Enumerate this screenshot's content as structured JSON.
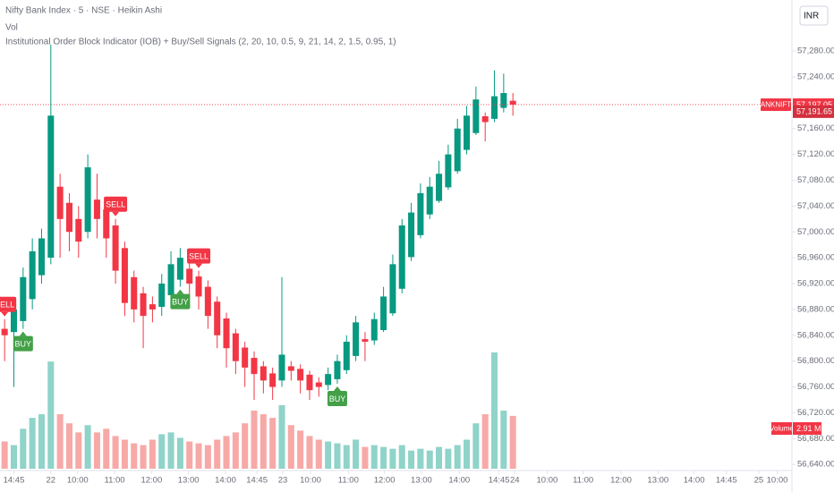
{
  "chart_data": {
    "type": "candlestick",
    "title": "Nifty Bank Index · 5 · NSE · Heikin Ashi",
    "volume_title": "Vol",
    "indicator_title": "Institutional Order Block Indicator (IOB) + Buy/Sell Signals (2, 20, 10, 0.5, 9, 21, 14, 2, 1.5, 0.95, 1)",
    "currency": "INR",
    "up_color": "#089981",
    "down_color": "#f23645",
    "volume_up_color": "#8fd3c9",
    "volume_down_color": "#f7a9a7",
    "grid": false,
    "xlim": [
      0,
      85.5
    ],
    "ylim": [
      56632,
      57359
    ],
    "xticks": [
      {
        "value": 1.5,
        "label": "14:45"
      },
      {
        "value": 5.5,
        "label": "22"
      },
      {
        "value": 8.4,
        "label": "10:00"
      },
      {
        "value": 12.4,
        "label": "11:00"
      },
      {
        "value": 16.4,
        "label": "12:00"
      },
      {
        "value": 20.4,
        "label": "13:00"
      },
      {
        "value": 24.4,
        "label": "14:00"
      },
      {
        "value": 27.8,
        "label": "14:45"
      },
      {
        "value": 30.6,
        "label": "23"
      },
      {
        "value": 33.6,
        "label": "10:00"
      },
      {
        "value": 37.7,
        "label": "11:00"
      },
      {
        "value": 41.6,
        "label": "12:00"
      },
      {
        "value": 45.6,
        "label": "13:00"
      },
      {
        "value": 49.7,
        "label": "14:00"
      },
      {
        "value": 54,
        "label": "14:45"
      },
      {
        "value": 55.7,
        "label": "24"
      },
      {
        "value": 59.2,
        "label": "10:00"
      },
      {
        "value": 63.1,
        "label": "11:00"
      },
      {
        "value": 67.2,
        "label": "12:00"
      },
      {
        "value": 71.2,
        "label": "13:00"
      },
      {
        "value": 75.1,
        "label": "14:00"
      },
      {
        "value": 78.6,
        "label": "14:45"
      },
      {
        "value": 82.1,
        "label": "25"
      },
      {
        "value": 84.1,
        "label": "10:00"
      }
    ],
    "yticks": [
      {
        "value": 57280,
        "label": "57,280.00"
      },
      {
        "value": 57240,
        "label": "57,240.00"
      },
      {
        "value": 57160,
        "label": "57,160.00"
      },
      {
        "value": 57120,
        "label": "57,120.00"
      },
      {
        "value": 57080,
        "label": "57,080.00"
      },
      {
        "value": 57040,
        "label": "57,040.00"
      },
      {
        "value": 57000,
        "label": "57,000.00"
      },
      {
        "value": 56960,
        "label": "56,960.00"
      },
      {
        "value": 56920,
        "label": "56,920.00"
      },
      {
        "value": 56880,
        "label": "56,880.00"
      },
      {
        "value": 56840,
        "label": "56,840.00"
      },
      {
        "value": 56800,
        "label": "56,800.00"
      },
      {
        "value": 56760,
        "label": "56,760.00"
      },
      {
        "value": 56720,
        "label": "56,720.00"
      },
      {
        "value": 56680,
        "label": "56,680.00"
      },
      {
        "value": 56640,
        "label": "56,640.00"
      }
    ],
    "x": [
      0.5,
      1.5,
      2.5,
      3.5,
      4.5,
      5.5,
      6.5,
      7.5,
      8.5,
      9.5,
      10.5,
      11.5,
      12.5,
      13.5,
      14.5,
      15.5,
      16.5,
      17.5,
      18.5,
      19.5,
      20.5,
      21.5,
      22.5,
      23.5,
      24.5,
      25.5,
      26.5,
      27.5,
      28.5,
      29.5,
      30.5,
      31.5,
      32.5,
      33.5,
      34.5,
      35.5,
      36.5,
      37.5,
      38.5,
      39.5,
      40.5,
      41.5,
      42.5,
      43.5,
      44.5,
      45.5,
      46.5,
      47.5,
      48.5,
      49.5,
      50.5,
      51.5,
      52.5,
      53.5,
      54.5,
      55.5
    ],
    "open": [
      56850,
      56845,
      56862,
      56896,
      56933,
      56960,
      57070,
      57045,
      57020,
      57000,
      57050,
      57035,
      57010,
      56975,
      56930,
      56905,
      56888,
      56884,
      56902,
      56926,
      56943,
      56931,
      56915,
      56892,
      56866,
      56843,
      56821,
      56805,
      56792,
      56781,
      56770,
      56792,
      56788,
      56779,
      56767,
      56763,
      56772,
      56786,
      56808,
      56834,
      56832,
      56848,
      56874,
      56912,
      56961,
      56995,
      57027,
      57048,
      57069,
      57094,
      57127,
      57153,
      57179,
      57175,
      57192,
      57203
    ],
    "high": [
      56865,
      56895,
      56945,
      56990,
      57005,
      57290,
      57090,
      57060,
      57040,
      57120,
      57090,
      57040,
      57020,
      56985,
      56940,
      56915,
      56900,
      56935,
      56970,
      56975,
      56955,
      56940,
      56925,
      56900,
      56875,
      56850,
      56830,
      56815,
      56800,
      56790,
      56930,
      56800,
      56795,
      56785,
      56775,
      56790,
      56810,
      56840,
      56870,
      56845,
      56875,
      56915,
      56965,
      57020,
      57045,
      57075,
      57085,
      57110,
      57135,
      57175,
      57195,
      57225,
      57185,
      57250,
      57245,
      57215
    ],
    "low": [
      56800,
      56760,
      56850,
      56880,
      56920,
      56950,
      56960,
      56970,
      56960,
      56990,
      56990,
      56960,
      56920,
      56870,
      56860,
      56820,
      56860,
      56870,
      56895,
      56915,
      56900,
      56880,
      56850,
      56820,
      56790,
      56780,
      56760,
      56740,
      56750,
      56740,
      56760,
      56770,
      56750,
      56740,
      56745,
      56755,
      56765,
      56780,
      56800,
      56800,
      56825,
      56845,
      56870,
      56905,
      56955,
      56990,
      57020,
      57045,
      57065,
      57090,
      57120,
      57150,
      57140,
      57170,
      57185,
      57180
    ],
    "close": [
      56840,
      56880,
      56930,
      56970,
      56990,
      57180,
      57020,
      57000,
      56985,
      57100,
      57020,
      56990,
      56940,
      56890,
      56880,
      56870,
      56880,
      56920,
      56950,
      56960,
      56920,
      56900,
      56870,
      56840,
      56820,
      56800,
      56790,
      56780,
      56770,
      56760,
      56810,
      56785,
      56770,
      56755,
      56760,
      56780,
      56800,
      56830,
      56860,
      56830,
      56865,
      56900,
      56950,
      57010,
      57030,
      57060,
      57070,
      57090,
      57120,
      57160,
      57180,
      57205,
      57170,
      57210,
      57215,
      57197.05
    ],
    "volume": {
      "name": "Volume",
      "last_value_label": "2.91 M",
      "values": [
        1.5,
        1.3,
        2.2,
        2.8,
        3.0,
        5.9,
        3.0,
        2.5,
        2.0,
        2.4,
        2.0,
        2.2,
        1.8,
        1.6,
        1.4,
        1.3,
        1.6,
        1.9,
        2.0,
        1.7,
        1.5,
        1.4,
        1.3,
        1.6,
        1.8,
        2.0,
        2.5,
        3.2,
        3.0,
        2.8,
        3.5,
        2.4,
        2.1,
        1.8,
        1.6,
        1.5,
        1.4,
        1.3,
        1.6,
        1.2,
        1.3,
        1.2,
        1.1,
        1.3,
        1.0,
        1.1,
        1.0,
        1.2,
        1.1,
        1.3,
        1.6,
        2.5,
        3.0,
        6.4,
        3.2,
        2.91
      ]
    },
    "signals": [
      {
        "candle": 0,
        "label": "SELL"
      },
      {
        "candle": 2,
        "label": "BUY"
      },
      {
        "candle": 12,
        "label": "SELL"
      },
      {
        "candle": 19,
        "label": "BUY"
      },
      {
        "candle": 21,
        "label": "SELL"
      },
      {
        "candle": 36,
        "label": "BUY"
      }
    ],
    "price_marks": [
      {
        "name": "BANKNIFTY",
        "value": 57197.05,
        "label": "57,197.05"
      },
      {
        "value": 57191.65,
        "label": "57,191.65"
      }
    ]
  }
}
